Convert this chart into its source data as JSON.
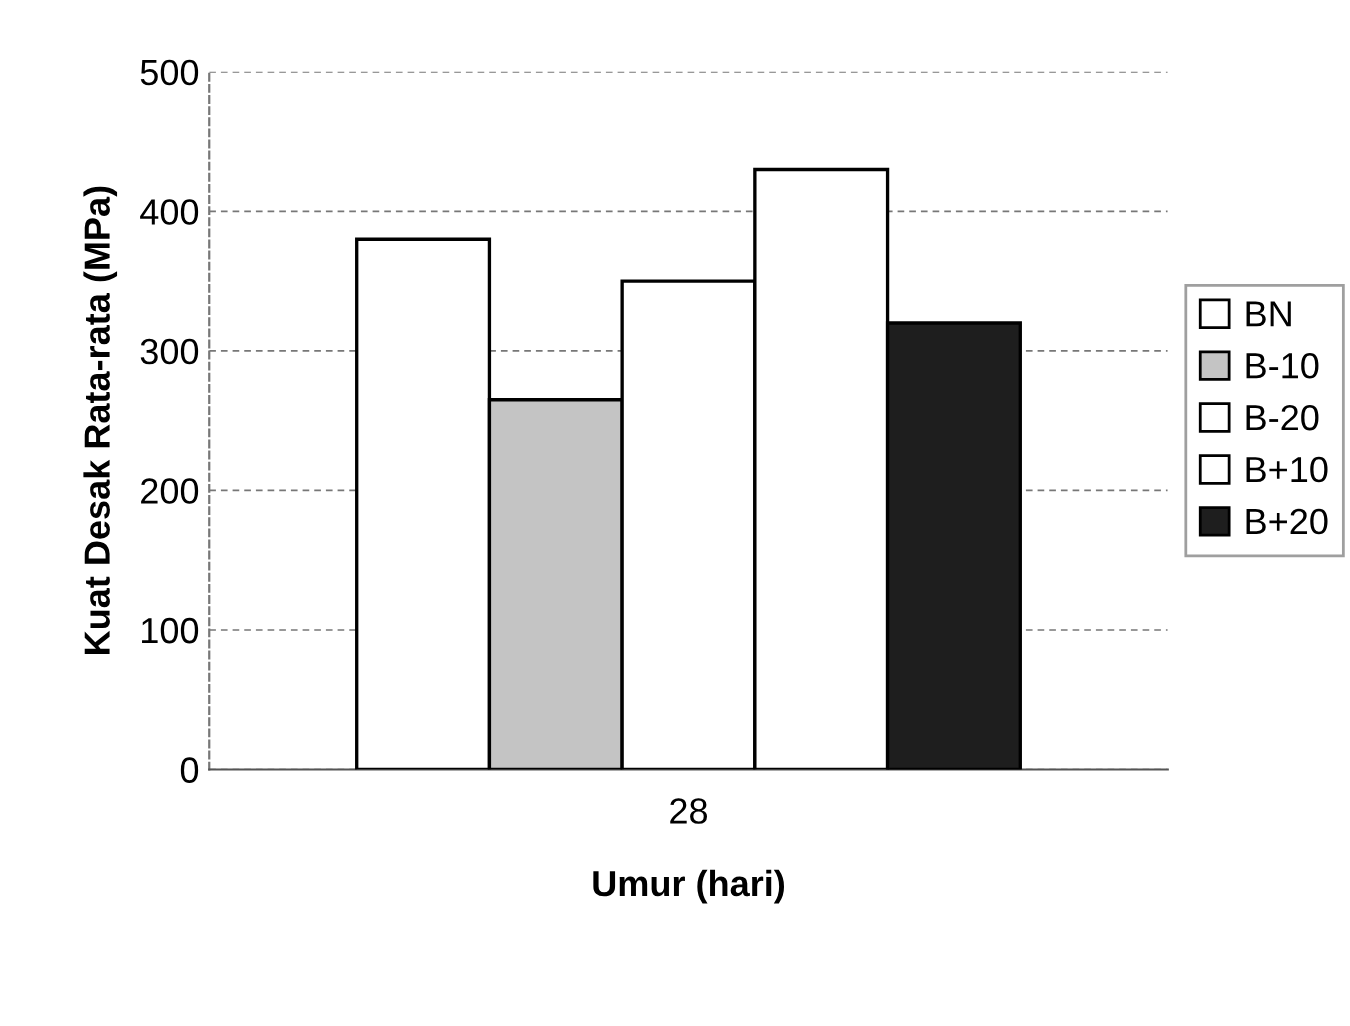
{
  "chart_data": {
    "type": "bar",
    "xlabel": "Umur (hari)",
    "ylabel": "Kuat Desak Rata-rata (MPa)",
    "categories": [
      "28"
    ],
    "series": [
      {
        "name": "BN",
        "color": "#ffffff",
        "values": [
          380
        ]
      },
      {
        "name": "B-10",
        "color": "#c4c4c4",
        "values": [
          265
        ]
      },
      {
        "name": "B-20",
        "color": "#ffffff",
        "values": [
          350
        ]
      },
      {
        "name": "B+10",
        "color": "#ffffff",
        "values": [
          430
        ]
      },
      {
        "name": "B+20",
        "color": "#1e1e1e",
        "values": [
          320
        ]
      }
    ],
    "ylim": [
      0,
      500
    ],
    "yticks": [
      0,
      100,
      200,
      300,
      400,
      500
    ],
    "grid": "y",
    "legend": "right"
  }
}
